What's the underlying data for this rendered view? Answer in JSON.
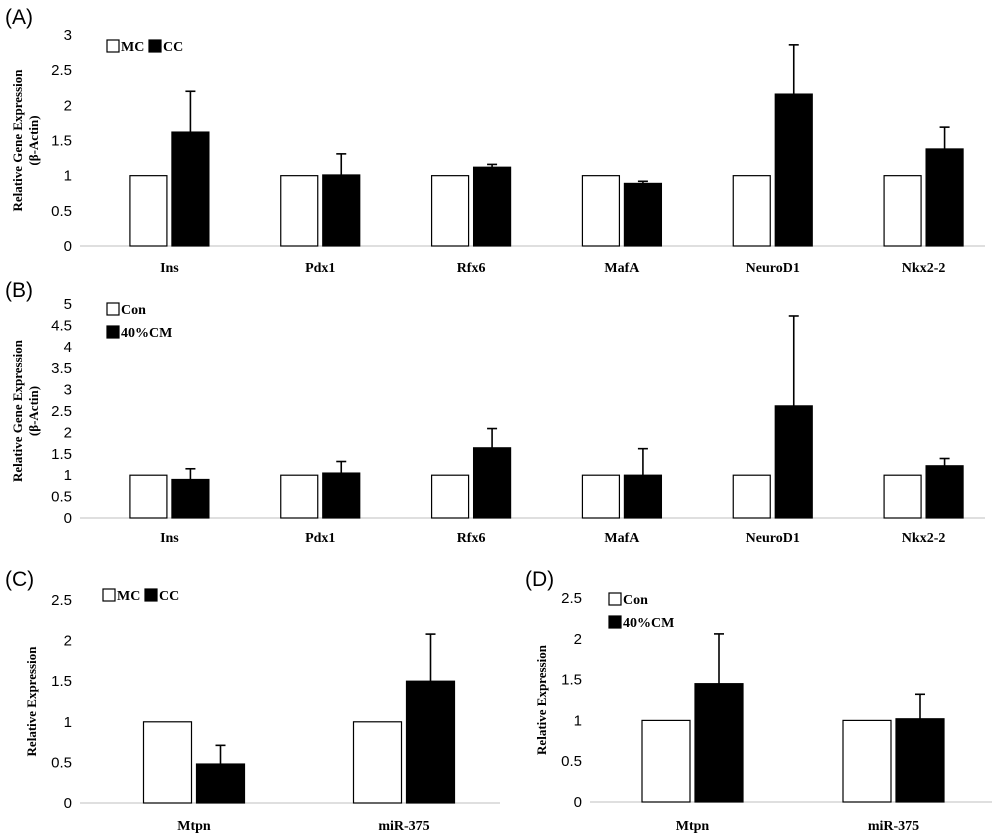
{
  "chart_data": [
    {
      "panel": "(A)",
      "type": "bar",
      "categories": [
        "Ins",
        "Pdx1",
        "Rfx6",
        "MafA",
        "NeuroD1",
        "Nkx2-2"
      ],
      "series": [
        {
          "name": "MC",
          "values": [
            1,
            1,
            1,
            1,
            1,
            1
          ],
          "errors": [
            0,
            0,
            0,
            0,
            0,
            0
          ],
          "color": "#ffffff"
        },
        {
          "name": "CC",
          "values": [
            1.62,
            1.01,
            1.12,
            0.89,
            2.16,
            1.38
          ],
          "errors": [
            0.58,
            0.3,
            0.04,
            0.03,
            0.7,
            0.31
          ],
          "color": "#000000"
        }
      ],
      "ylabel_lines": [
        "Relative Gene Expression",
        "(β-Actin)"
      ],
      "ylim": [
        0,
        3
      ],
      "yticks": [
        "0",
        "0.5",
        "1",
        "1.5",
        "2",
        "2.5",
        "3"
      ],
      "legend": "top-left, inline"
    },
    {
      "panel": "(B)",
      "type": "bar",
      "categories": [
        "Ins",
        "Pdx1",
        "Rfx6",
        "MafA",
        "NeuroD1",
        "Nkx2-2"
      ],
      "series": [
        {
          "name": "Con",
          "values": [
            1,
            1,
            1,
            1,
            1,
            1
          ],
          "errors": [
            0,
            0,
            0,
            0,
            0,
            0
          ],
          "color": "#ffffff"
        },
        {
          "name": "40%CM",
          "values": [
            0.9,
            1.05,
            1.64,
            1.0,
            2.62,
            1.22
          ],
          "errors": [
            0.25,
            0.27,
            0.45,
            0.62,
            2.1,
            0.17
          ],
          "color": "#000000"
        }
      ],
      "ylabel_lines": [
        "Relative Gene Expression",
        "(β-Actin)"
      ],
      "ylim": [
        0,
        5
      ],
      "yticks": [
        "0",
        "0.5",
        "1",
        "1.5",
        "2",
        "2.5",
        "3",
        "3.5",
        "4",
        "4.5",
        "5"
      ],
      "legend": "top-left, stacked"
    },
    {
      "panel": "(C)",
      "type": "bar",
      "categories": [
        "Mtpn",
        "miR-375"
      ],
      "series": [
        {
          "name": "MC",
          "values": [
            1,
            1
          ],
          "errors": [
            0,
            0
          ],
          "color": "#ffffff"
        },
        {
          "name": "CC",
          "values": [
            0.48,
            1.5
          ],
          "errors": [
            0.23,
            0.58
          ],
          "color": "#000000"
        }
      ],
      "ylabel_lines": [
        "Relative Expression"
      ],
      "ylim": [
        0,
        2.5
      ],
      "yticks": [
        "0",
        "0.5",
        "1",
        "1.5",
        "2",
        "2.5"
      ],
      "legend": "top-left, inline"
    },
    {
      "panel": "(D)",
      "type": "bar",
      "categories": [
        "Mtpn",
        "miR-375"
      ],
      "series": [
        {
          "name": "Con",
          "values": [
            1,
            1
          ],
          "errors": [
            0,
            0
          ],
          "color": "#ffffff"
        },
        {
          "name": "40%CM",
          "values": [
            1.45,
            1.02
          ],
          "errors": [
            0.61,
            0.3
          ],
          "color": "#000000"
        }
      ],
      "ylabel_lines": [
        "Relative Expression"
      ],
      "ylim": [
        0,
        2.5
      ],
      "yticks": [
        "0",
        "0.5",
        "1",
        "1.5",
        "2",
        "2.5"
      ],
      "legend": "top-left, stacked"
    }
  ]
}
